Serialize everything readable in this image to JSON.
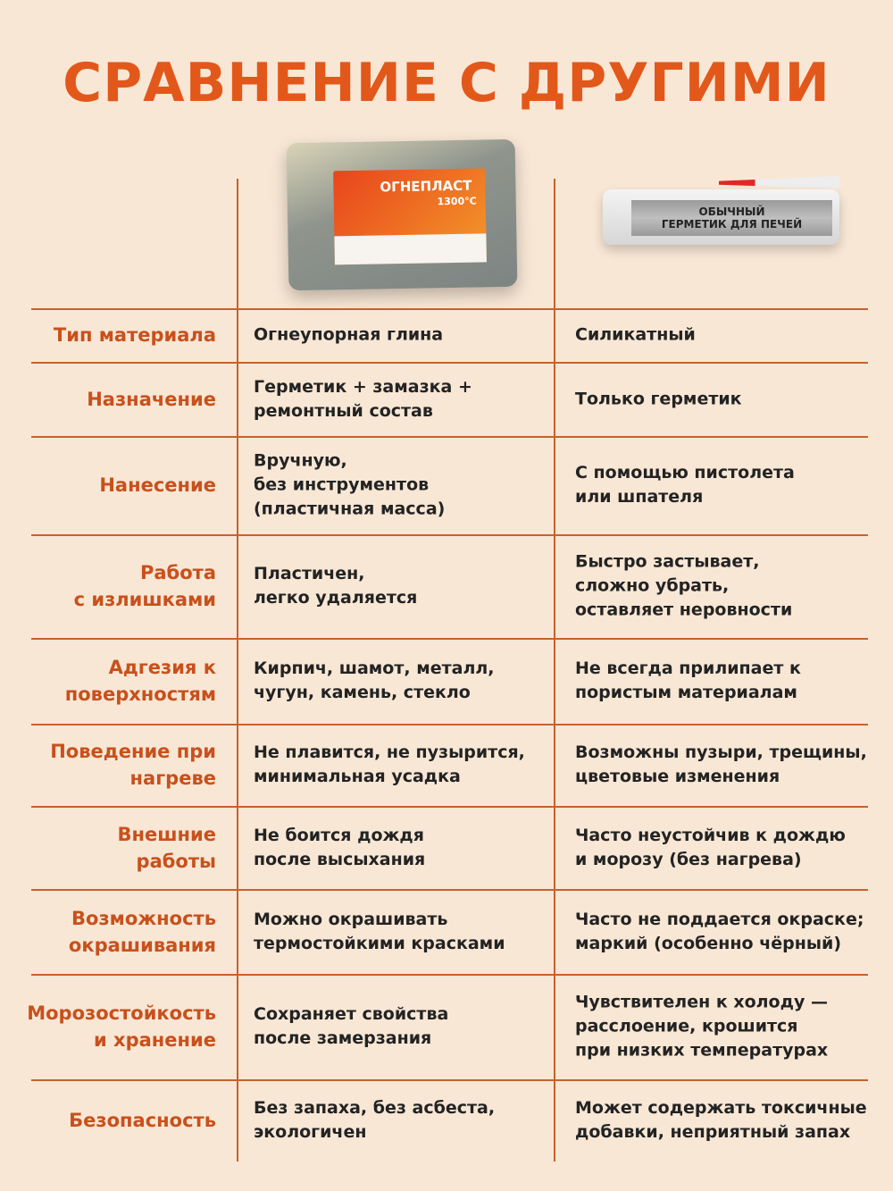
{
  "title": "СРАВНЕНИЕ С ДРУГИМИ",
  "products": {
    "ours": {
      "brand": "ОГНЕПЛАСТ",
      "temperature": "1300°C"
    },
    "other": {
      "label_line1": "ОБЫЧНЫЙ",
      "label_line2": "ГЕРМЕТИК ДЛЯ ПЕЧЕЙ"
    }
  },
  "colors": {
    "accent": "#e2581b",
    "label": "#c9501c",
    "background": "#f8e7d5",
    "lines": "#c8612c"
  },
  "rows": [
    {
      "label": "Тип материала",
      "ours": "Огнеупорная глина",
      "other": "Силикатный"
    },
    {
      "label": "Назначение",
      "ours": "Герметик + замазка +\nремонтный состав",
      "other": "Только герметик"
    },
    {
      "label": "Нанесение",
      "ours": "Вручную,\nбез инструментов\n(пластичная масса)",
      "other": "С помощью пистолета\nили шпателя"
    },
    {
      "label": "Работа\nс излишками",
      "ours": "Пластичен,\nлегко удаляется",
      "other": "Быстро застывает,\nсложно убрать,\nоставляет неровности"
    },
    {
      "label": "Адгезия к\nповерхностям",
      "ours": "Кирпич, шамот, металл,\nчугун, камень, стекло",
      "other": "Не всегда прилипает к\nпористым материалам"
    },
    {
      "label": "Поведение при\nнагреве",
      "ours": "Не плавится, не пузырится,\nминимальная усадка",
      "other": "Возможны пузыри, трещины,\nцветовые изменения"
    },
    {
      "label": "Внешние\nработы",
      "ours": "Не боится дождя\nпосле высыхания",
      "other": "Часто неустойчив к дождю\nи морозу (без нагрева)"
    },
    {
      "label": "Возможность\nокрашивания",
      "ours": "Можно окрашивать\nтермостойкими красками",
      "other": "Часто не поддается окраске;\nмаркий (особенно чёрный)"
    },
    {
      "label": "Морозостойкость\nи хранение",
      "ours": "Сохраняет свойства\nпосле замерзания",
      "other": "Чувствителен к холоду —\nрасслоение, крошится\nпри низких температурах"
    },
    {
      "label": "Безопасность",
      "ours": "Без запаха, без асбеста,\nэкологичен",
      "other": "Может содержать токсичные\nдобавки, неприятный запах"
    }
  ]
}
